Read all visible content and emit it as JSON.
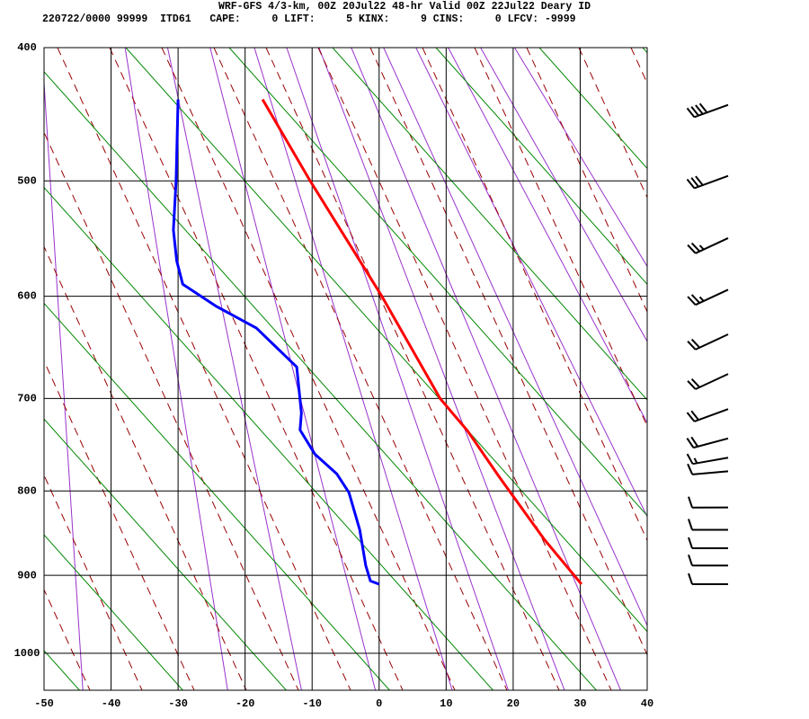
{
  "chart_data": {
    "type": "skewt",
    "title": "WRF-GFS 4/3-km, 00Z 20Jul22 48-hr Valid 00Z 22Jul22 Deary ID",
    "subtitle": "220722/0000 99999  ITD61   CAPE:     0 LIFT:     5 KINX:     9 CINS:     0 LFCV: -9999",
    "xlim": [
      -50,
      40
    ],
    "xticks": [
      -50,
      -40,
      -30,
      -20,
      -10,
      0,
      10,
      20,
      30,
      40
    ],
    "ylim": [
      400,
      1050
    ],
    "yticks": [
      400,
      500,
      600,
      700,
      800,
      900,
      1000
    ],
    "grid": true,
    "series": [
      {
        "color": "#ff0000",
        "x": [
          -17.4,
          -10.3,
          0.4,
          9.1,
          13.2,
          17.9,
          24.6,
          30.2
        ],
        "values": [
          437,
          500,
          600,
          700,
          734,
          784,
          856,
          911
        ]
      },
      {
        "color": "#0000ff",
        "x": [
          -30.0,
          -30.3,
          -30.7,
          -30.2,
          -29.3,
          -24.4,
          -18.3,
          -12.3,
          -11.6,
          -11.8,
          -9.6,
          -6.3,
          -4.5,
          -2.9,
          -2.0,
          -1.3,
          0.0
        ],
        "values": [
          437,
          500,
          541,
          568,
          589,
          609,
          630,
          668,
          715,
          733,
          759,
          781,
          802,
          845,
          888,
          907,
          911
        ]
      }
    ],
    "winds": {
      "pressure": [
        441,
        496,
        548,
        594,
        636,
        675,
        711,
        742,
        763,
        778,
        819,
        845,
        867,
        888,
        911
      ],
      "speed": [
        40,
        30,
        25,
        25,
        20,
        20,
        20,
        20,
        15,
        10,
        10,
        10,
        10,
        10,
        10
      ],
      "direction": [
        250,
        250,
        245,
        245,
        245,
        245,
        250,
        255,
        260,
        265,
        270,
        270,
        270,
        270,
        270
      ]
    }
  }
}
